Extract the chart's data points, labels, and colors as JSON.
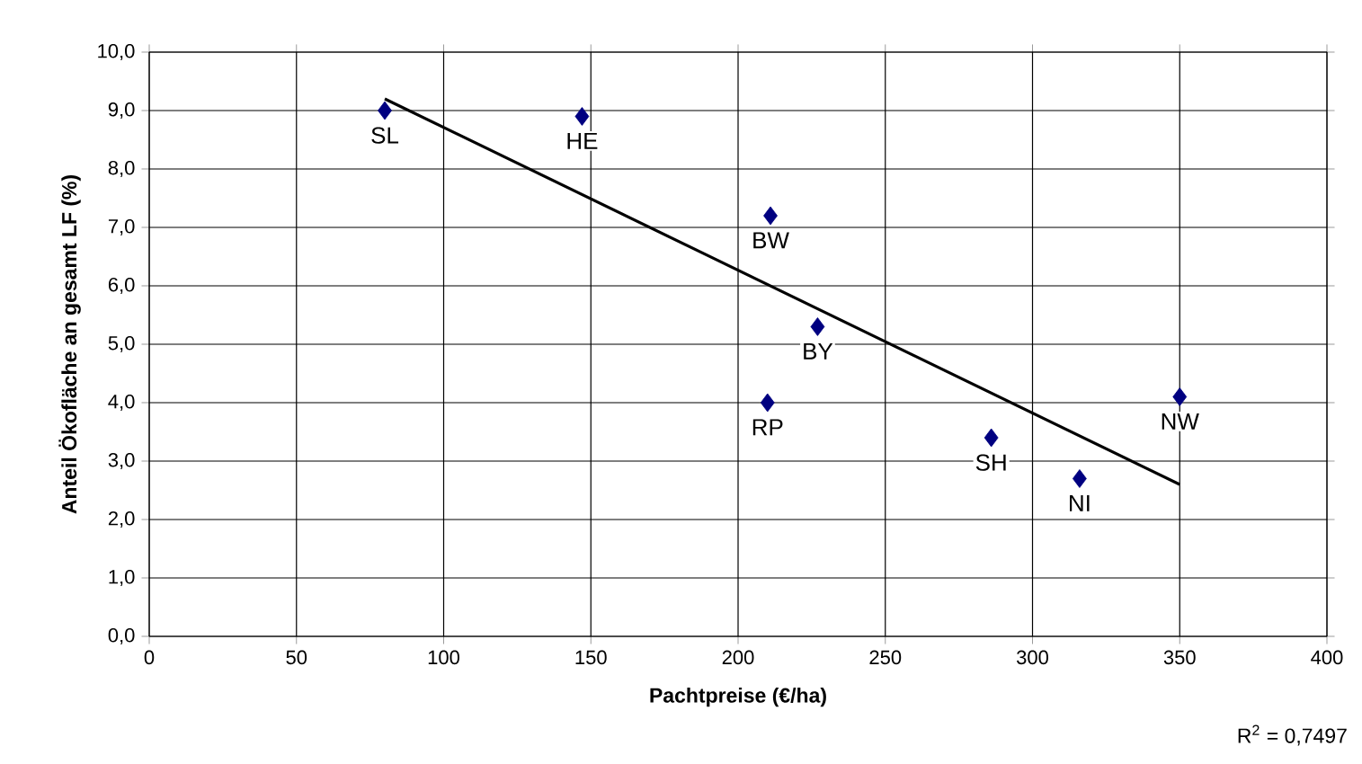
{
  "chart_data": {
    "type": "scatter",
    "xlabel": "Pachtpreise (€/ha)",
    "ylabel": "Anteil Ökofläche an gesamt LF (%)",
    "x": [
      80,
      147,
      211,
      227,
      210,
      286,
      316,
      350
    ],
    "series": [
      {
        "color": "#000080",
        "values": [
          9.0,
          8.9,
          7.2,
          5.3,
          4.0,
          3.4,
          2.7,
          4.1
        ],
        "marker": "diamond"
      },
      {
        "type": "line",
        "color": "#000000",
        "x": [
          80,
          350
        ],
        "values": [
          9.2,
          2.6
        ],
        "marker": "none",
        "line_style": "solid"
      }
    ],
    "xlim": [
      0,
      400
    ],
    "xticks": [
      0,
      50,
      100,
      150,
      200,
      250,
      300,
      350,
      400
    ],
    "ylim": [
      0,
      10
    ],
    "yticks": [
      {
        "value": 0,
        "label": "0,0"
      },
      {
        "value": 1,
        "label": "1,0"
      },
      {
        "value": 2,
        "label": "2,0"
      },
      {
        "value": 3,
        "label": "3,0"
      },
      {
        "value": 4,
        "label": "4,0"
      },
      {
        "value": 5,
        "label": "5,0"
      },
      {
        "value": 6,
        "label": "6,0"
      },
      {
        "value": 7,
        "label": "7,0"
      },
      {
        "value": 8,
        "label": "8,0"
      },
      {
        "value": 9,
        "label": "9,0"
      },
      {
        "value": 10,
        "label": "10,0"
      }
    ],
    "grid": true,
    "annotations": [
      {
        "text": "SL",
        "x": 80,
        "y": 9.0
      },
      {
        "text": "HE",
        "x": 147,
        "y": 8.9
      },
      {
        "text": "BW",
        "x": 211,
        "y": 7.2
      },
      {
        "text": "BY",
        "x": 227,
        "y": 5.3
      },
      {
        "text": "RP",
        "x": 210,
        "y": 4.0
      },
      {
        "text": "SH",
        "x": 286,
        "y": 3.4
      },
      {
        "text": "NI",
        "x": 316,
        "y": 2.7
      },
      {
        "text": "NW",
        "x": 350,
        "y": 4.1
      },
      "R$^{2}$ = 0,7497"
    ]
  }
}
